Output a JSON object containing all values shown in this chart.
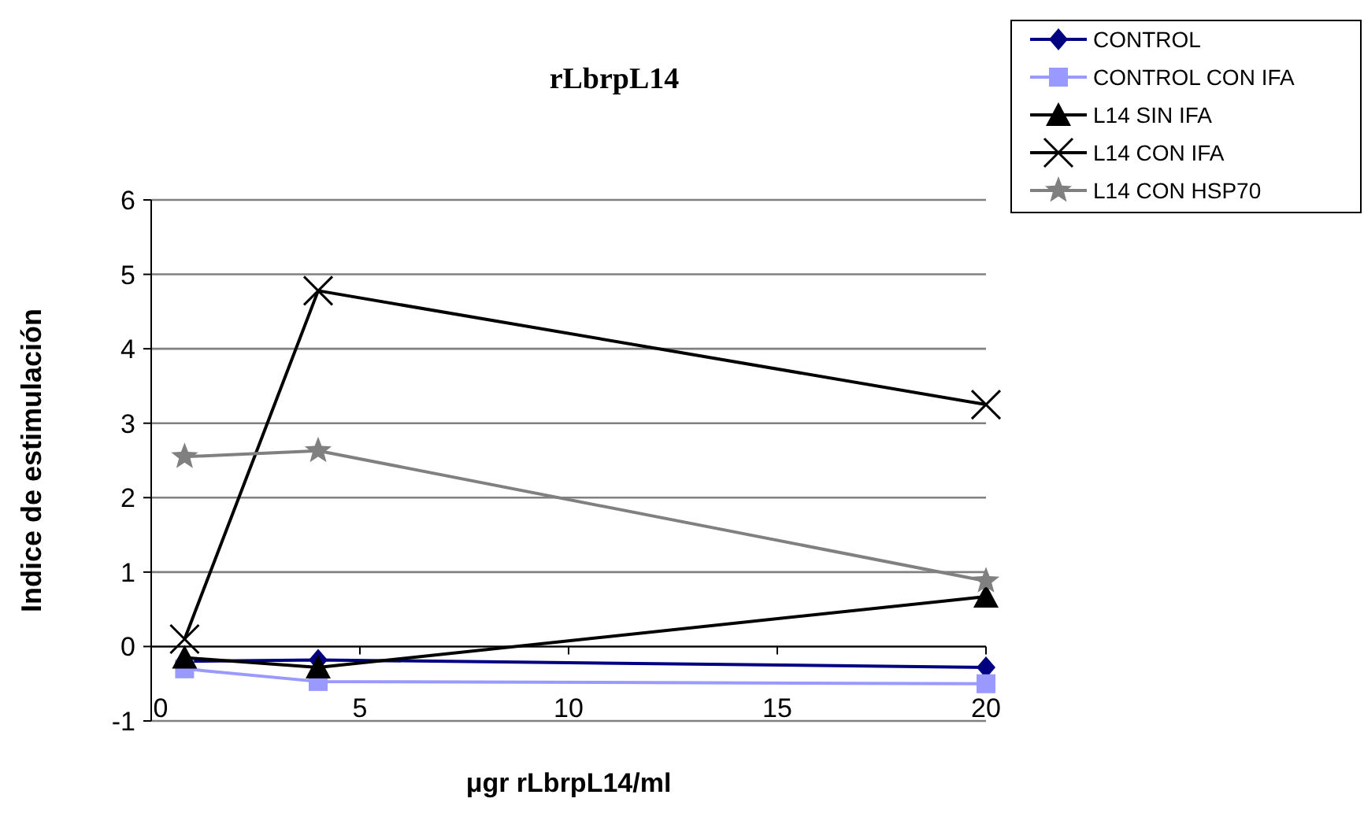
{
  "chart_data": {
    "type": "line",
    "title": "rLbrpL14",
    "xlabel": "μgr rLbrpL14/ml",
    "ylabel": "Indice de estimulación",
    "x": [
      0.8,
      4,
      20
    ],
    "series": [
      {
        "name": "CONTROL",
        "color": "#000080",
        "marker": "diamond",
        "values": [
          -0.2,
          -0.18,
          -0.28
        ]
      },
      {
        "name": "CONTROL CON IFA",
        "color": "#9999ff",
        "marker": "square",
        "values": [
          -0.3,
          -0.47,
          -0.5
        ]
      },
      {
        "name": "L14 SIN IFA",
        "color": "#000000",
        "marker": "triangle",
        "values": [
          -0.15,
          -0.28,
          0.67
        ]
      },
      {
        "name": "L14 CON IFA",
        "color": "#000000",
        "marker": "cross",
        "values": [
          0.1,
          4.78,
          3.25
        ]
      },
      {
        "name": "L14 CON HSP70",
        "color": "#808080",
        "marker": "star",
        "values": [
          2.55,
          2.63,
          0.88
        ]
      }
    ],
    "xlim": [
      0,
      20
    ],
    "xticks": [
      0,
      5,
      10,
      15,
      20
    ],
    "ylim": [
      -1,
      6
    ],
    "yticks": [
      -1,
      0,
      1,
      2,
      3,
      4,
      5,
      6
    ],
    "grid": "y",
    "legend": "top right"
  }
}
